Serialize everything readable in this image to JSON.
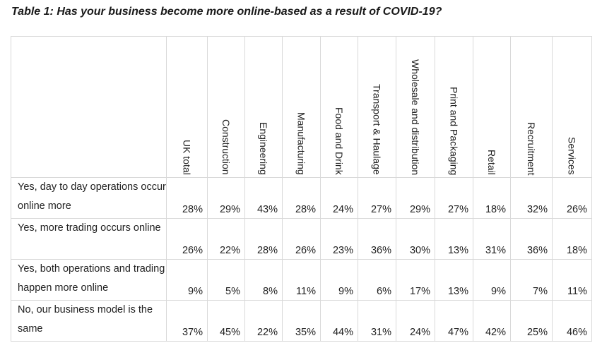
{
  "title": "Table 1: Has your business become more online-based as a result of COVID-19?",
  "columns": [
    "UK total",
    "Construction",
    "Engineering",
    "Manufacturing",
    "Food and Drink",
    "Transport & Haulage",
    "Wholesale and distribution",
    "Print and Packaging",
    "Retail",
    "Recruitment",
    "Services"
  ],
  "rows": [
    {
      "label": "Yes, day to day operations occur online more",
      "values": [
        "28%",
        "29%",
        "43%",
        "28%",
        "24%",
        "27%",
        "29%",
        "27%",
        "18%",
        "32%",
        "26%"
      ]
    },
    {
      "label": "Yes, more trading occurs online",
      "values": [
        "26%",
        "22%",
        "28%",
        "26%",
        "23%",
        "36%",
        "30%",
        "13%",
        "31%",
        "36%",
        "18%"
      ]
    },
    {
      "label": "Yes, both operations and trading happen more online",
      "values": [
        "9%",
        "5%",
        "8%",
        "11%",
        "9%",
        "6%",
        "17%",
        "13%",
        "9%",
        "7%",
        "11%"
      ]
    },
    {
      "label": "No, our business model is the same",
      "values": [
        "37%",
        "45%",
        "22%",
        "35%",
        "44%",
        "31%",
        "24%",
        "47%",
        "42%",
        "25%",
        "46%"
      ]
    }
  ]
}
